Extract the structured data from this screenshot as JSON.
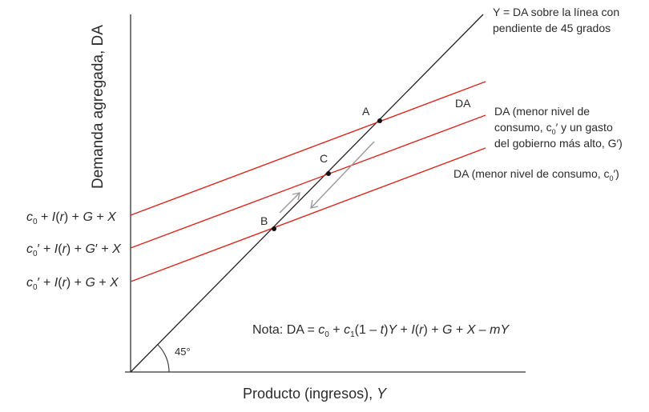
{
  "axes": {
    "y_label": "Demanda agregada, DA",
    "x_label_text": "Producto (ingresos), ",
    "x_label_var": "Y"
  },
  "lines": {
    "line_45_label_1": "Y = DA sobre la línea con",
    "line_45_label_2": "pendiente de 45 grados",
    "da_label": "DA",
    "da_high_label_1": "DA (menor nivel de",
    "da_high_label_2": "consumo, c",
    "da_high_label_2_sub": "0",
    "da_high_label_2_rest": "′ y un gasto",
    "da_high_label_3": "del gobierno más alto, G′)",
    "da_low_label": "DA (menor nivel de consumo, c",
    "da_low_label_sub": "0",
    "da_low_label_rest": "′)"
  },
  "points": {
    "a": "A",
    "b": "B",
    "c": "C"
  },
  "intercepts": {
    "top": {
      "c": "c",
      "sub": "0",
      "rest_1": " + ",
      "i": "I",
      "rest_2": "(",
      "r": "r",
      "rest_3": ") + ",
      "g": "G",
      "rest_4": " + ",
      "x": "X"
    },
    "mid": {
      "c": "c",
      "sub": "0",
      "prime": "′",
      "rest_1": " + ",
      "i": "I",
      "rest_2": "(",
      "r": "r",
      "rest_3": ") + ",
      "g": "G",
      "gprime": "′",
      "rest_4": " + ",
      "x": "X"
    },
    "bot": {
      "c": "c",
      "sub": "0",
      "prime": "′",
      "rest_1": " + ",
      "i": "I",
      "rest_2": "(",
      "r": "r",
      "rest_3": ") + ",
      "g": "G",
      "rest_4": " + ",
      "x": "X"
    }
  },
  "angle_label": "45°",
  "note": {
    "prefix": "Nota: DA = ",
    "c0": "c",
    "c0_sub": "0",
    "plus1": " + ",
    "c1": "c",
    "c1_sub": "1",
    "paren": "(1 – ",
    "t": "t",
    "close": ")",
    "y1": "Y",
    "plus2": " + ",
    "i": "I",
    "open_r": "(",
    "r": "r",
    "close_r": ")",
    "plus3": " + ",
    "g": "G",
    "plus4": " + ",
    "x": "X",
    "minus": " – ",
    "m": "m",
    "y2": "Y"
  },
  "colors": {
    "axis": "#333333",
    "red_lines": "#d9261c",
    "arrows": "#999999",
    "text": "#2b2b2b"
  }
}
